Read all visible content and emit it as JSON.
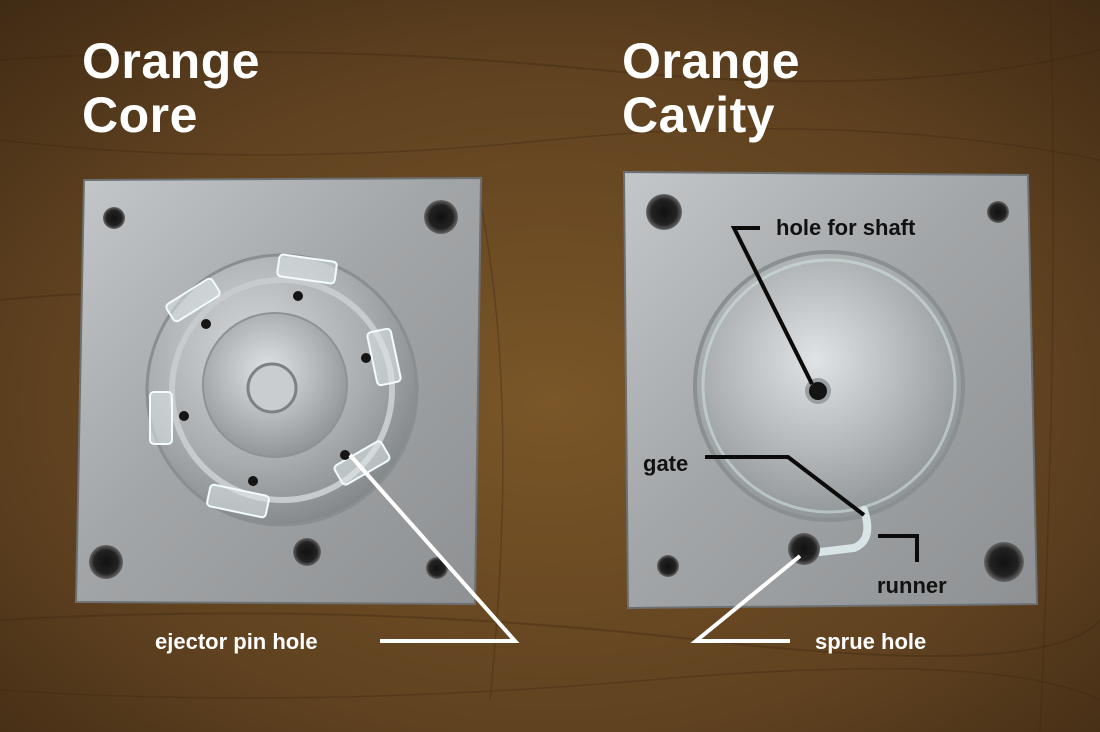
{
  "titles": {
    "core_line1": "Orange",
    "core_line2": "Core",
    "cavity_line1": "Orange",
    "cavity_line2": "Cavity"
  },
  "labels": {
    "ejector_pin_hole": "ejector pin hole",
    "sprue_hole": "sprue hole",
    "hole_for_shaft": "hole for shaft",
    "gate": "gate",
    "runner": "runner"
  },
  "colors": {
    "wood_background": "#6b4a26",
    "aluminum": "#a9acae",
    "light_text": "#ffffff",
    "dark_text": "#111111"
  }
}
